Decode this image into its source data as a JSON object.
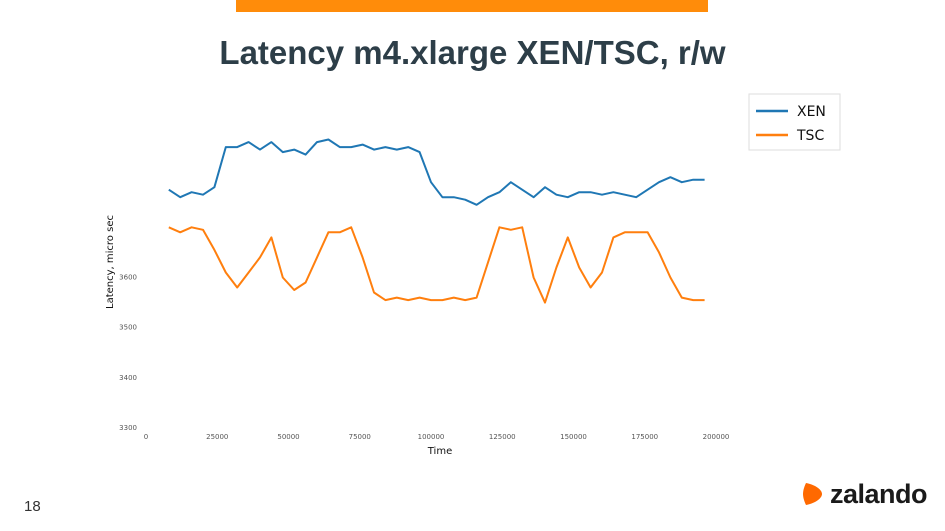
{
  "slide": {
    "title": "Latency m4.xlarge XEN/TSC, r/w",
    "page_number": "18",
    "accent_color": "#ff8c0a"
  },
  "logo": {
    "text": "zalando",
    "icon": "zalando-logo-icon"
  },
  "chart_data": {
    "type": "line",
    "xlabel": "Time",
    "ylabel": "Latency, micro sec",
    "xlim": [
      0,
      200000
    ],
    "ylim": [
      3300,
      3900
    ],
    "x_ticks": [
      0,
      25000,
      50000,
      75000,
      100000,
      125000,
      150000,
      175000,
      200000
    ],
    "x_tick_labels": [
      "0",
      "25000",
      "50000",
      "75000",
      "100000",
      "125000",
      "150000",
      "175000",
      "200000"
    ],
    "y_ticks": [
      3300,
      3400,
      3500,
      3600
    ],
    "y_tick_labels": [
      "3300",
      "3400",
      "3500",
      "3600"
    ],
    "legend_position": "top-right",
    "grid": false,
    "x": [
      8000,
      12000,
      16000,
      20000,
      24000,
      28000,
      32000,
      36000,
      40000,
      44000,
      48000,
      52000,
      56000,
      60000,
      64000,
      68000,
      72000,
      76000,
      80000,
      84000,
      88000,
      92000,
      96000,
      100000,
      104000,
      108000,
      112000,
      116000,
      120000,
      124000,
      128000,
      132000,
      136000,
      140000,
      144000,
      148000,
      152000,
      156000,
      160000,
      164000,
      168000,
      172000,
      176000,
      180000,
      184000,
      188000,
      192000,
      196000
    ],
    "series": [
      {
        "name": "XEN",
        "color": "#1f77b4",
        "values": [
          3775,
          3760,
          3770,
          3765,
          3780,
          3860,
          3860,
          3870,
          3855,
          3870,
          3850,
          3855,
          3845,
          3870,
          3875,
          3860,
          3860,
          3865,
          3855,
          3860,
          3855,
          3860,
          3850,
          3790,
          3760,
          3760,
          3755,
          3745,
          3760,
          3770,
          3790,
          3775,
          3760,
          3780,
          3765,
          3760,
          3770,
          3770,
          3765,
          3770,
          3765,
          3760,
          3775,
          3790,
          3800,
          3790,
          3795,
          3795
        ]
      },
      {
        "name": "TSC",
        "color": "#ff7f0e",
        "values": [
          3700,
          3690,
          3700,
          3695,
          3655,
          3610,
          3580,
          3610,
          3640,
          3680,
          3600,
          3575,
          3590,
          3640,
          3690,
          3690,
          3700,
          3640,
          3570,
          3555,
          3560,
          3555,
          3560,
          3555,
          3555,
          3560,
          3555,
          3560,
          3630,
          3700,
          3695,
          3700,
          3600,
          3550,
          3620,
          3680,
          3620,
          3580,
          3610,
          3680,
          3690,
          3690,
          3690,
          3650,
          3600,
          3560,
          3555,
          3555
        ]
      }
    ]
  }
}
